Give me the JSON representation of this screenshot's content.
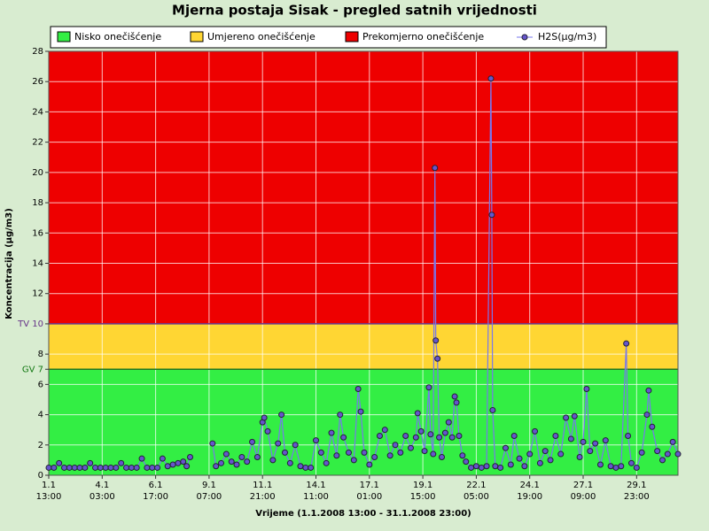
{
  "chart_data": {
    "type": "line",
    "title": "Mjerna postaja Sisak - pregled satnih vrijednosti",
    "xlabel": "Vrijeme (1.1.2008 13:00 - 31.1.2008 23:00)",
    "ylabel": "Koncentracija (µg/m3)",
    "bands": [
      {
        "name": "Nisko onečišćenje",
        "color": "#33ee44",
        "from": 0,
        "to": 7,
        "line": "#227722"
      },
      {
        "name": "Umjereno onečišćenje",
        "color": "#ffd633",
        "from": 7,
        "to": 10,
        "line": "#663388"
      },
      {
        "name": "Prekomjerno onečišćenje",
        "color": "#ee0000",
        "from": 10,
        "to": 28
      }
    ],
    "xlim": [
      0,
      730
    ],
    "ylim": [
      0,
      28
    ],
    "xticks": [
      {
        "value": 0,
        "label": "1.1\n13:00"
      },
      {
        "value": 62,
        "label": "4.1\n03:00"
      },
      {
        "value": 124,
        "label": "6.1\n17:00"
      },
      {
        "value": 186,
        "label": "9.1\n07:00"
      },
      {
        "value": 248,
        "label": "11.1\n21:00"
      },
      {
        "value": 310,
        "label": "14.1\n11:00"
      },
      {
        "value": 372,
        "label": "17.1\n01:00"
      },
      {
        "value": 434,
        "label": "19.1\n15:00"
      },
      {
        "value": 496,
        "label": "22.1\n05:00"
      },
      {
        "value": 558,
        "label": "24.1\n19:00"
      },
      {
        "value": 620,
        "label": "27.1\n09:00"
      },
      {
        "value": 682,
        "label": "29.1\n23:00"
      }
    ],
    "yticks": [
      0,
      2,
      4,
      6,
      {
        "value": 7,
        "label": "GV 7",
        "color": "#117711"
      },
      8,
      {
        "value": 10,
        "label": "TV 10",
        "color": "#663388"
      },
      12,
      14,
      16,
      18,
      20,
      22,
      24,
      26,
      28
    ],
    "grid": true,
    "series": [
      {
        "name": "H2S(µg/m3)",
        "color": "#7777ee",
        "marker": "#6655cc",
        "x": [
          0,
          6,
          12,
          18,
          24,
          30,
          36,
          42,
          48,
          54,
          60,
          66,
          72,
          78,
          84,
          90,
          96,
          102,
          108,
          114,
          120,
          126,
          132,
          138,
          144,
          150,
          156,
          160,
          164,
          174,
          190,
          194,
          200,
          206,
          212,
          218,
          224,
          230,
          236,
          242,
          248,
          250,
          254,
          260,
          266,
          270,
          274,
          280,
          286,
          292,
          298,
          304,
          310,
          316,
          322,
          328,
          334,
          338,
          342,
          348,
          354,
          359,
          362,
          366,
          372,
          378,
          384,
          390,
          396,
          402,
          408,
          414,
          420,
          426,
          428,
          432,
          436,
          441,
          443,
          446,
          448,
          449,
          451,
          453,
          456,
          460,
          464,
          468,
          471,
          473,
          476,
          480,
          484,
          490,
          496,
          502,
          508,
          513,
          514,
          515,
          518,
          524,
          530,
          536,
          540,
          546,
          552,
          558,
          564,
          570,
          576,
          582,
          588,
          594,
          600,
          606,
          610,
          616,
          620,
          624,
          628,
          634,
          640,
          646,
          652,
          658,
          664,
          670,
          672,
          676,
          682,
          688,
          694,
          696,
          700,
          706,
          712,
          718,
          724,
          730
        ],
        "values": [
          0.5,
          0.5,
          0.8,
          0.5,
          0.5,
          0.5,
          0.5,
          0.5,
          0.8,
          0.5,
          0.5,
          0.5,
          0.5,
          0.5,
          0.8,
          0.5,
          0.5,
          0.5,
          1.1,
          0.5,
          0.5,
          0.5,
          1.1,
          0.6,
          0.7,
          0.8,
          0.9,
          0.6,
          1.2,
          null,
          2.1,
          0.6,
          0.8,
          1.4,
          0.9,
          0.7,
          1.2,
          0.9,
          2.2,
          1.2,
          3.5,
          3.8,
          2.9,
          1.0,
          2.1,
          4.0,
          1.5,
          0.8,
          2.0,
          0.6,
          0.5,
          0.5,
          2.3,
          1.5,
          0.8,
          2.8,
          1.3,
          4.0,
          2.5,
          1.5,
          1.0,
          5.7,
          4.2,
          1.5,
          0.7,
          1.2,
          2.6,
          3.0,
          1.3,
          2.0,
          1.5,
          2.6,
          1.8,
          2.5,
          4.1,
          2.9,
          1.6,
          5.8,
          2.7,
          1.4,
          20.3,
          8.9,
          7.7,
          2.5,
          1.2,
          2.8,
          3.5,
          2.5,
          5.2,
          4.8,
          2.6,
          1.3,
          0.9,
          0.5,
          0.6,
          0.5,
          0.6,
          26.2,
          17.2,
          4.3,
          0.6,
          0.5,
          1.8,
          0.7,
          2.6,
          1.1,
          0.6,
          1.4,
          2.9,
          0.8,
          1.6,
          1.0,
          2.6,
          1.4,
          3.8,
          2.4,
          3.9,
          1.2,
          2.2,
          5.7,
          1.6,
          2.1,
          0.7,
          2.3,
          0.6,
          0.5,
          0.6,
          8.7,
          2.6,
          0.8,
          0.5,
          1.5,
          4.0,
          5.6,
          3.2,
          1.6,
          1.0,
          1.4,
          2.2,
          1.4
        ]
      }
    ]
  }
}
